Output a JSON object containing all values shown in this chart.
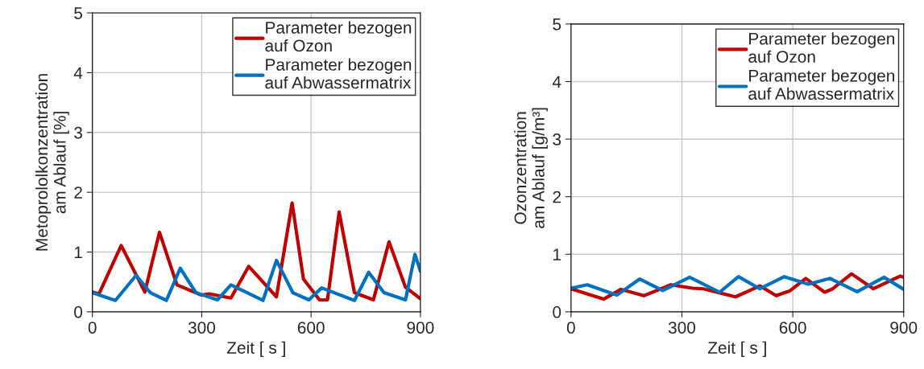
{
  "chart_data": [
    {
      "type": "line",
      "xlabel": "Zeit [ s ]",
      "ylabel": "Metoprololkonzentration\nam Ablauf [%]",
      "xlim": [
        0,
        900
      ],
      "ylim": [
        0,
        5
      ],
      "xticks": [
        0,
        300,
        600,
        900
      ],
      "yticks": [
        0,
        1,
        2,
        3,
        4,
        5
      ],
      "grid": true,
      "legend": "top right",
      "line_style": "solid",
      "marker": "none",
      "series": [
        {
          "name": "Parameter bezogen\nauf Ozon",
          "color": "#c00000",
          "x": [
            0,
            18,
            79,
            144,
            184,
            232,
            299,
            321,
            380,
            429,
            505,
            548,
            579,
            623,
            645,
            677,
            719,
            771,
            814,
            859,
            900
          ],
          "values": [
            0.33,
            0.3,
            1.11,
            0.33,
            1.33,
            0.45,
            0.28,
            0.3,
            0.23,
            0.76,
            0.25,
            1.82,
            0.55,
            0.2,
            0.2,
            1.67,
            0.32,
            0.2,
            1.17,
            0.41,
            0.22
          ]
        },
        {
          "name": "Parameter bezogen\nauf Abwassermatrix",
          "color": "#0070c0",
          "x": [
            0,
            63,
            120,
            159,
            203,
            241,
            284,
            343,
            380,
            468,
            505,
            550,
            594,
            629,
            719,
            758,
            800,
            859,
            885,
            900
          ],
          "values": [
            0.32,
            0.19,
            0.61,
            0.32,
            0.19,
            0.73,
            0.32,
            0.2,
            0.45,
            0.19,
            0.86,
            0.32,
            0.2,
            0.4,
            0.19,
            0.66,
            0.32,
            0.2,
            0.96,
            0.68
          ]
        }
      ]
    },
    {
      "type": "line",
      "xlabel": "Zeit [ s ]",
      "ylabel": "Ozonzentration\nam Ablauf [g/m³]",
      "xlim": [
        0,
        900
      ],
      "ylim": [
        0,
        5
      ],
      "xticks": [
        0,
        300,
        600,
        900
      ],
      "yticks": [
        0,
        1,
        2,
        3,
        4,
        5
      ],
      "grid": true,
      "legend": "top right",
      "line_style": "solid",
      "marker": "none",
      "series": [
        {
          "name": "Parameter bezogen\nauf Ozon",
          "color": "#c00000",
          "x": [
            0,
            88,
            135,
            197,
            270,
            329,
            358,
            445,
            511,
            555,
            591,
            635,
            686,
            708,
            759,
            818,
            891,
            900
          ],
          "values": [
            0.4,
            0.22,
            0.39,
            0.28,
            0.47,
            0.41,
            0.4,
            0.26,
            0.45,
            0.28,
            0.36,
            0.58,
            0.34,
            0.4,
            0.66,
            0.4,
            0.62,
            0.6
          ]
        },
        {
          "name": "Parameter bezogen\nauf Abwassermatrix",
          "color": "#0070c0",
          "x": [
            0,
            44,
            124,
            186,
            248,
            321,
            402,
            453,
            511,
            577,
            642,
            701,
            774,
            847,
            900
          ],
          "values": [
            0.41,
            0.47,
            0.29,
            0.57,
            0.37,
            0.6,
            0.34,
            0.61,
            0.4,
            0.61,
            0.48,
            0.58,
            0.35,
            0.6,
            0.39
          ]
        }
      ]
    }
  ]
}
